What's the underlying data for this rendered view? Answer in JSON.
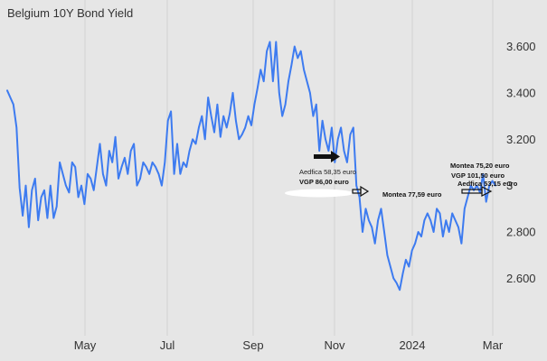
{
  "chart_data": {
    "type": "line",
    "title": "Belgium 10Y Bond Yield",
    "xlabel": "",
    "ylabel": "",
    "ylim": [
      2.43,
      3.68
    ],
    "grid": "vertical lines at month ticks",
    "legend": "none",
    "line_color": "#3d7bf0",
    "x_ticks": [
      "May",
      "Jul",
      "Sep",
      "Nov",
      "2024",
      "Mar"
    ],
    "y_ticks": [
      {
        "value": 3.6,
        "label": "3.600"
      },
      {
        "value": 3.4,
        "label": "3.400"
      },
      {
        "value": 3.2,
        "label": "3.200"
      },
      {
        "value": 3.0,
        "label": "3"
      },
      {
        "value": 2.8,
        "label": "2.800"
      },
      {
        "value": 2.6,
        "label": "2.600"
      }
    ],
    "series": [
      {
        "values": [
          3.41,
          3.38,
          3.35,
          3.25,
          2.99,
          2.87,
          3.0,
          2.82,
          2.98,
          3.03,
          2.85,
          2.95,
          2.98,
          2.86,
          3.0,
          2.86,
          2.91,
          3.1,
          3.05,
          3.0,
          2.97,
          3.1,
          3.08,
          2.95,
          3.0,
          2.92,
          3.05,
          3.03,
          2.98,
          3.08,
          3.18,
          3.05,
          3.0,
          3.15,
          3.1,
          3.21,
          3.03,
          3.08,
          3.12,
          3.05,
          3.15,
          3.18,
          3.0,
          3.03,
          3.1,
          3.08,
          3.05,
          3.1,
          3.08,
          3.05,
          3.0,
          3.1,
          3.28,
          3.32,
          3.05,
          3.18,
          3.05,
          3.1,
          3.08,
          3.15,
          3.2,
          3.18,
          3.25,
          3.3,
          3.2,
          3.38,
          3.3,
          3.23,
          3.35,
          3.21,
          3.3,
          3.25,
          3.31,
          3.4,
          3.28,
          3.2,
          3.22,
          3.25,
          3.3,
          3.26,
          3.35,
          3.42,
          3.5,
          3.45,
          3.58,
          3.62,
          3.45,
          3.62,
          3.4,
          3.3,
          3.35,
          3.45,
          3.52,
          3.6,
          3.55,
          3.58,
          3.5,
          3.45,
          3.4,
          3.3,
          3.35,
          3.15,
          3.28,
          3.2,
          3.15,
          3.25,
          3.1,
          3.2,
          3.25,
          3.15,
          3.1,
          3.22,
          3.25,
          3.0,
          2.95,
          2.8,
          2.9,
          2.85,
          2.82,
          2.75,
          2.85,
          2.9,
          2.8,
          2.7,
          2.65,
          2.6,
          2.58,
          2.55,
          2.62,
          2.68,
          2.65,
          2.72,
          2.75,
          2.8,
          2.78,
          2.85,
          2.88,
          2.85,
          2.8,
          2.9,
          2.88,
          2.78,
          2.85,
          2.8,
          2.88,
          2.85,
          2.82,
          2.75,
          2.9,
          2.95,
          3.0,
          2.98,
          3.0,
          2.97,
          3.05,
          2.93,
          3.0,
          3.02,
          3.0
        ]
      }
    ],
    "annotations": [
      {
        "text": "Aedfica 58,35 euro",
        "bold": false
      },
      {
        "text": "VGP 86,00 euro",
        "bold": true
      },
      {
        "text": "Montea 77,59 euro",
        "bold": true
      },
      {
        "text": "Montea 75,20 euro",
        "bold": true
      },
      {
        "text": "VGP 101,50 euro",
        "bold": true
      },
      {
        "text": "Aedfica 53,15 euro",
        "bold": true
      }
    ]
  }
}
